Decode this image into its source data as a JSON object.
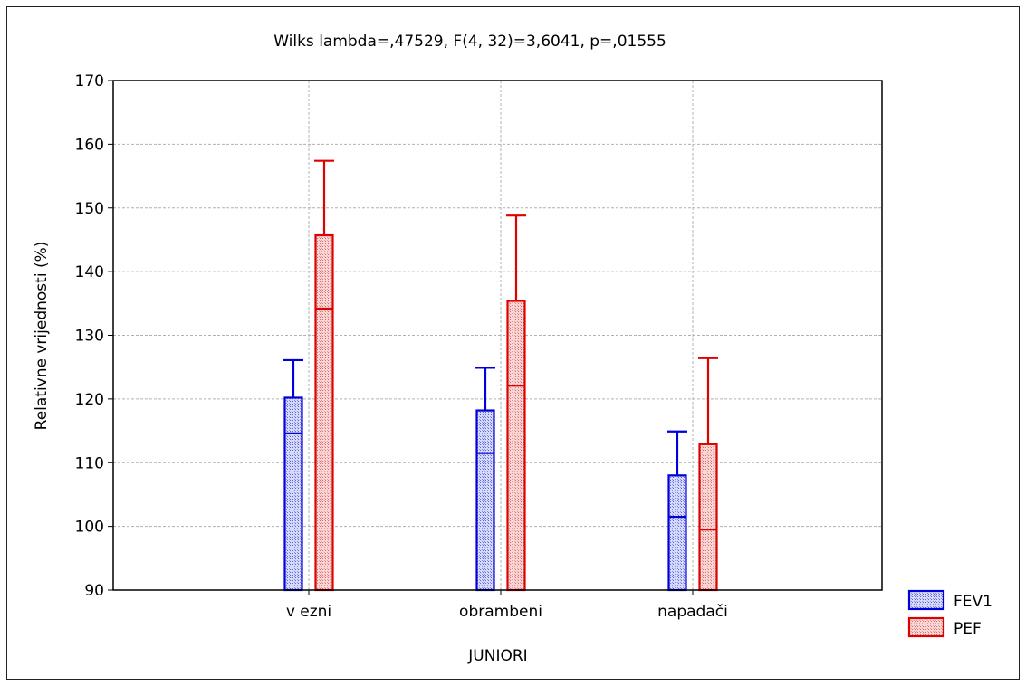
{
  "chart_data": {
    "type": "bar",
    "title": "Wilks lambda=,47529, F(4, 32)=3,6041, p=,01555",
    "xlabel": "JUNIORI",
    "ylabel": "Relativne vrijednosti (%)",
    "categories": [
      "v ezni",
      "obrambeni",
      "napadači"
    ],
    "ylim": [
      90,
      170
    ],
    "yticks": [
      90,
      100,
      110,
      120,
      130,
      140,
      150,
      160,
      170
    ],
    "grid": true,
    "legend_position": "bottom-right outside",
    "series": [
      {
        "name": "FEV1",
        "color": "#0000dd",
        "fill": "#b8bdf0",
        "values": [
          120.2,
          118.2,
          108.0
        ],
        "lower": [
          114.6,
          111.5,
          101.5
        ],
        "upper": [
          126.1,
          124.9,
          114.9
        ]
      },
      {
        "name": "PEF",
        "color": "#e00000",
        "fill": "#f2bdbd",
        "values": [
          145.7,
          135.4,
          112.9
        ],
        "lower": [
          134.2,
          122.1,
          99.5
        ],
        "upper": [
          157.4,
          148.8,
          126.4
        ]
      }
    ]
  }
}
